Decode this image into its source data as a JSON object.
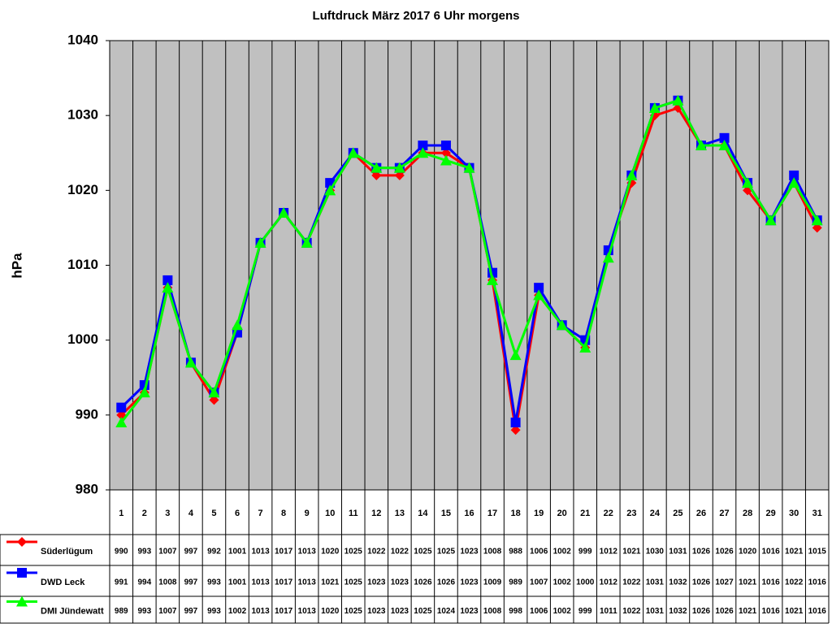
{
  "chart_data": {
    "type": "line",
    "title": "Luftdruck März 2017 6 Uhr morgens",
    "y_label": "hPa",
    "categories": [
      "1",
      "2",
      "3",
      "4",
      "5",
      "6",
      "7",
      "8",
      "9",
      "10",
      "11",
      "12",
      "13",
      "14",
      "15",
      "16",
      "17",
      "18",
      "19",
      "20",
      "21",
      "22",
      "23",
      "24",
      "25",
      "26",
      "27",
      "28",
      "29",
      "30",
      "31"
    ],
    "series": [
      {
        "name": "Süderlügum",
        "color": "#ff0000",
        "marker": "diamond",
        "values": [
          990,
          993,
          1007,
          997,
          992,
          1001,
          1013,
          1017,
          1013,
          1020,
          1025,
          1022,
          1022,
          1025,
          1025,
          1023,
          1008,
          988,
          1006,
          1002,
          999,
          1012,
          1021,
          1030,
          1031,
          1026,
          1026,
          1020,
          1016,
          1021,
          1015
        ]
      },
      {
        "name": "DWD Leck",
        "color": "#0000ff",
        "marker": "square",
        "values": [
          991,
          994,
          1008,
          997,
          993,
          1001,
          1013,
          1017,
          1013,
          1021,
          1025,
          1023,
          1023,
          1026,
          1026,
          1023,
          1009,
          989,
          1007,
          1002,
          1000,
          1012,
          1022,
          1031,
          1032,
          1026,
          1027,
          1021,
          1016,
          1022,
          1016
        ]
      },
      {
        "name": "DMI Jündewatt",
        "color": "#00ff00",
        "marker": "triangle",
        "values": [
          989,
          993,
          1007,
          997,
          993,
          1002,
          1013,
          1017,
          1013,
          1020,
          1025,
          1023,
          1023,
          1025,
          1024,
          1023,
          1008,
          998,
          1006,
          1002,
          999,
          1011,
          1022,
          1031,
          1032,
          1026,
          1026,
          1021,
          1016,
          1021,
          1016
        ]
      }
    ],
    "ylim": [
      980,
      1040
    ],
    "yticks": [
      980,
      990,
      1000,
      1010,
      1020,
      1030,
      1040
    ],
    "grid": true,
    "data_table": true
  }
}
